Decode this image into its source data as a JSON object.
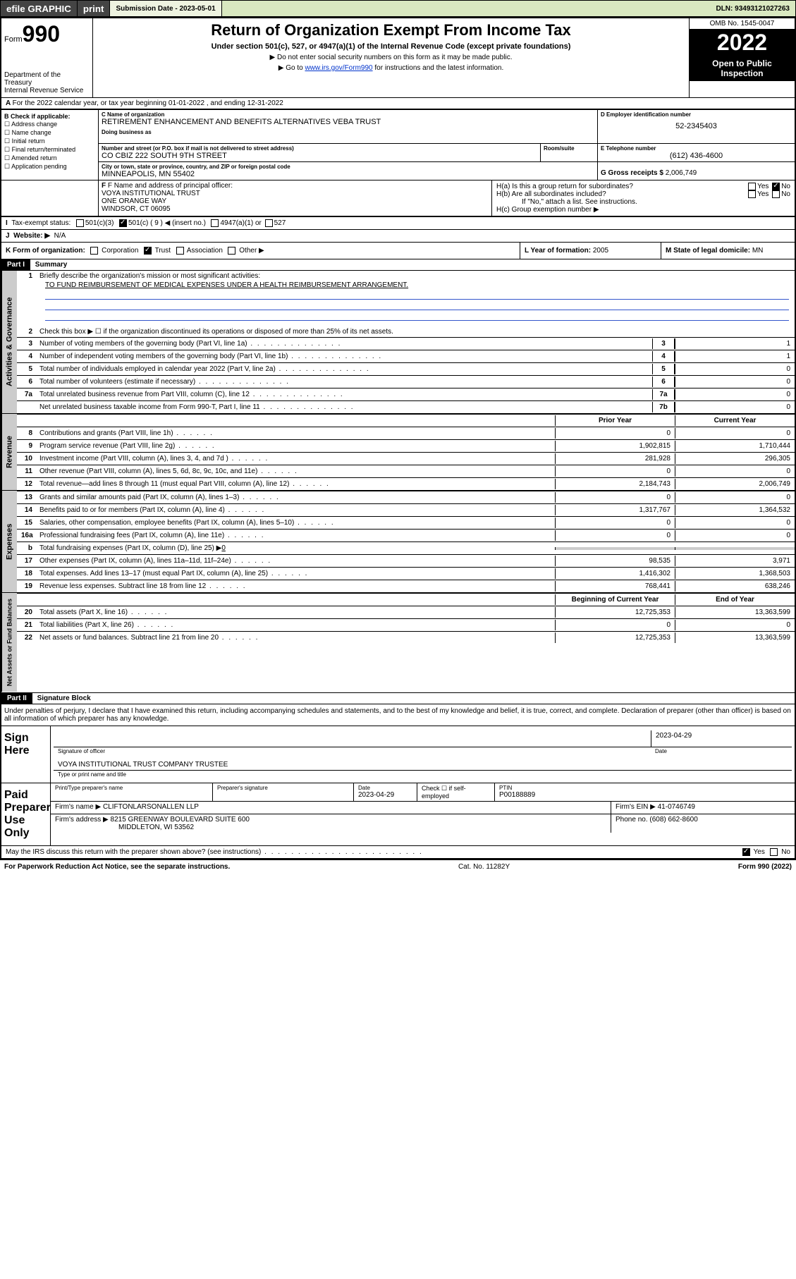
{
  "topbar": {
    "efile": "efile GRAPHIC",
    "print": "print",
    "sub_label": "Submission Date - 2023-05-01",
    "dln": "DLN: 93493121027263"
  },
  "header": {
    "form_word": "Form",
    "form_num": "990",
    "dept": "Department of the Treasury",
    "irs": "Internal Revenue Service",
    "title": "Return of Organization Exempt From Income Tax",
    "sub": "Under section 501(c), 527, or 4947(a)(1) of the Internal Revenue Code (except private foundations)",
    "ssn": "Do not enter social security numbers on this form as it may be made public.",
    "goto": "Go to ",
    "goto_link": "www.irs.gov/Form990",
    "goto_tail": " for instructions and the latest information.",
    "omb": "OMB No. 1545-0047",
    "year": "2022",
    "open": "Open to Public Inspection"
  },
  "line_a": "For the 2022 calendar year, or tax year beginning 01-01-2022    , and ending 12-31-2022",
  "col_b": {
    "hdr": "B Check if applicable:",
    "items": [
      "Address change",
      "Name change",
      "Initial return",
      "Final return/terminated",
      "Amended return",
      "Application pending"
    ]
  },
  "box_c": {
    "lbl_name": "C Name of organization",
    "name": "RETIREMENT ENHANCEMENT AND BENEFITS ALTERNATIVES VEBA TRUST",
    "dba_lbl": "Doing business as",
    "addr_lbl": "Number and street (or P.O. box if mail is not delivered to street address)",
    "room_lbl": "Room/suite",
    "addr": "CO CBIZ 222 SOUTH 9TH STREET",
    "city_lbl": "City or town, state or province, country, and ZIP or foreign postal code",
    "city": "MINNEAPOLIS, MN  55402"
  },
  "box_d": {
    "lbl": "D Employer identification number",
    "val": "52-2345403"
  },
  "box_e": {
    "lbl": "E Telephone number",
    "val": "(612) 436-4600"
  },
  "box_g": {
    "lbl": "G Gross receipts $",
    "val": "2,006,749"
  },
  "box_f": {
    "lbl": "F Name and address of principal officer:",
    "l1": "VOYA INSTITUTIONAL TRUST",
    "l2": "ONE ORANGE WAY",
    "l3": "WINDSOR, CT  06095"
  },
  "box_h": {
    "a": "H(a)  Is this a group return for subordinates?",
    "b": "H(b)  Are all subordinates included?",
    "b2": "If \"No,\" attach a list. See instructions.",
    "c": "H(c)  Group exemption number ▶",
    "yes": "Yes",
    "no": "No"
  },
  "line_i": {
    "lbl": "Tax-exempt status:",
    "o1": "501(c)(3)",
    "o2": "501(c) ( 9 ) ◀ (insert no.)",
    "o3": "4947(a)(1) or",
    "o4": "527"
  },
  "line_j": {
    "lbl": "Website: ▶",
    "val": "N/A"
  },
  "line_k": {
    "lbl": "K Form of organization:",
    "corp": "Corporation",
    "trust": "Trust",
    "assoc": "Association",
    "other": "Other ▶"
  },
  "line_l": {
    "lbl": "L Year of formation:",
    "val": "2005"
  },
  "line_m": {
    "lbl": "M State of legal domicile:",
    "val": "MN"
  },
  "part1": {
    "hdr": "Part I",
    "title": "Summary",
    "l1": "Briefly describe the organization's mission or most significant activities:",
    "mission": "TO FUND REIMBURSEMENT OF MEDICAL EXPENSES UNDER A HEALTH REIMBURSEMENT ARRANGEMENT.",
    "l2": "Check this box ▶ ☐  if the organization discontinued its operations or disposed of more than 25% of its net assets.",
    "rows_gov": [
      {
        "n": "3",
        "d": "Number of voting members of the governing body (Part VI, line 1a)",
        "k": "3",
        "v": "1"
      },
      {
        "n": "4",
        "d": "Number of independent voting members of the governing body (Part VI, line 1b)",
        "k": "4",
        "v": "1"
      },
      {
        "n": "5",
        "d": "Total number of individuals employed in calendar year 2022 (Part V, line 2a)",
        "k": "5",
        "v": "0"
      },
      {
        "n": "6",
        "d": "Total number of volunteers (estimate if necessary)",
        "k": "6",
        "v": "0"
      },
      {
        "n": "7a",
        "d": "Total unrelated business revenue from Part VIII, column (C), line 12",
        "k": "7a",
        "v": "0"
      },
      {
        "n": "",
        "d": "Net unrelated business taxable income from Form 990-T, Part I, line 11",
        "k": "7b",
        "v": "0"
      }
    ],
    "col_hdr_prior": "Prior Year",
    "col_hdr_curr": "Current Year",
    "rows_rev": [
      {
        "n": "8",
        "d": "Contributions and grants (Part VIII, line 1h)",
        "p": "0",
        "c": "0"
      },
      {
        "n": "9",
        "d": "Program service revenue (Part VIII, line 2g)",
        "p": "1,902,815",
        "c": "1,710,444"
      },
      {
        "n": "10",
        "d": "Investment income (Part VIII, column (A), lines 3, 4, and 7d )",
        "p": "281,928",
        "c": "296,305"
      },
      {
        "n": "11",
        "d": "Other revenue (Part VIII, column (A), lines 5, 6d, 8c, 9c, 10c, and 11e)",
        "p": "0",
        "c": "0"
      },
      {
        "n": "12",
        "d": "Total revenue—add lines 8 through 11 (must equal Part VIII, column (A), line 12)",
        "p": "2,184,743",
        "c": "2,006,749"
      }
    ],
    "rows_exp": [
      {
        "n": "13",
        "d": "Grants and similar amounts paid (Part IX, column (A), lines 1–3)",
        "p": "0",
        "c": "0"
      },
      {
        "n": "14",
        "d": "Benefits paid to or for members (Part IX, column (A), line 4)",
        "p": "1,317,767",
        "c": "1,364,532"
      },
      {
        "n": "15",
        "d": "Salaries, other compensation, employee benefits (Part IX, column (A), lines 5–10)",
        "p": "0",
        "c": "0"
      },
      {
        "n": "16a",
        "d": "Professional fundraising fees (Part IX, column (A), line 11e)",
        "p": "0",
        "c": "0"
      }
    ],
    "row_b": {
      "n": "b",
      "d": "Total fundraising expenses (Part IX, column (D), line 25) ▶",
      "v": "0"
    },
    "rows_exp2": [
      {
        "n": "17",
        "d": "Other expenses (Part IX, column (A), lines 11a–11d, 11f–24e)",
        "p": "98,535",
        "c": "3,971"
      },
      {
        "n": "18",
        "d": "Total expenses. Add lines 13–17 (must equal Part IX, column (A), line 25)",
        "p": "1,416,302",
        "c": "1,368,503"
      },
      {
        "n": "19",
        "d": "Revenue less expenses. Subtract line 18 from line 12",
        "p": "768,441",
        "c": "638,246"
      }
    ],
    "col_hdr_beg": "Beginning of Current Year",
    "col_hdr_end": "End of Year",
    "rows_net": [
      {
        "n": "20",
        "d": "Total assets (Part X, line 16)",
        "p": "12,725,353",
        "c": "13,363,599"
      },
      {
        "n": "21",
        "d": "Total liabilities (Part X, line 26)",
        "p": "0",
        "c": "0"
      },
      {
        "n": "22",
        "d": "Net assets or fund balances. Subtract line 21 from line 20",
        "p": "12,725,353",
        "c": "13,363,599"
      }
    ],
    "vtabs": {
      "gov": "Activities & Governance",
      "rev": "Revenue",
      "exp": "Expenses",
      "net": "Net Assets or Fund Balances"
    }
  },
  "part2": {
    "hdr": "Part II",
    "title": "Signature Block",
    "decl": "Under penalties of perjury, I declare that I have examined this return, including accompanying schedules and statements, and to the best of my knowledge and belief, it is true, correct, and complete. Declaration of preparer (other than officer) is based on all information of which preparer has any knowledge."
  },
  "sign": {
    "here": "Sign Here",
    "sig_off": "Signature of officer",
    "date": "Date",
    "date_val": "2023-04-29",
    "name": "VOYA INSTITUTIONAL TRUST COMPANY  TRUSTEE",
    "name_lbl": "Type or print name and title"
  },
  "paid": {
    "hdr": "Paid Preparer Use Only",
    "pt_name": "Print/Type preparer's name",
    "pt_sig": "Preparer's signature",
    "pt_date": "Date",
    "pt_date_v": "2023-04-29",
    "chk": "Check ☐ if self-employed",
    "ptin_lbl": "PTIN",
    "ptin": "P00188889",
    "firm_lbl": "Firm's name    ▶",
    "firm": "CLIFTONLARSONALLEN LLP",
    "ein_lbl": "Firm's EIN ▶",
    "ein": "41-0746749",
    "addr_lbl": "Firm's address ▶",
    "addr1": "8215 GREENWAY BOULEVARD SUITE 600",
    "addr2": "MIDDLETON, WI  53562",
    "ph_lbl": "Phone no.",
    "ph": "(608) 662-8600"
  },
  "discuss": {
    "q": "May the IRS discuss this return with the preparer shown above? (see instructions)",
    "yes": "Yes",
    "no": "No"
  },
  "footer": {
    "l": "For Paperwork Reduction Act Notice, see the separate instructions.",
    "c": "Cat. No. 11282Y",
    "r": "Form 990 (2022)"
  },
  "colors": {
    "link": "#0033cc",
    "topbar_bg": "#d9e8c0",
    "gray": "#cccccc"
  }
}
